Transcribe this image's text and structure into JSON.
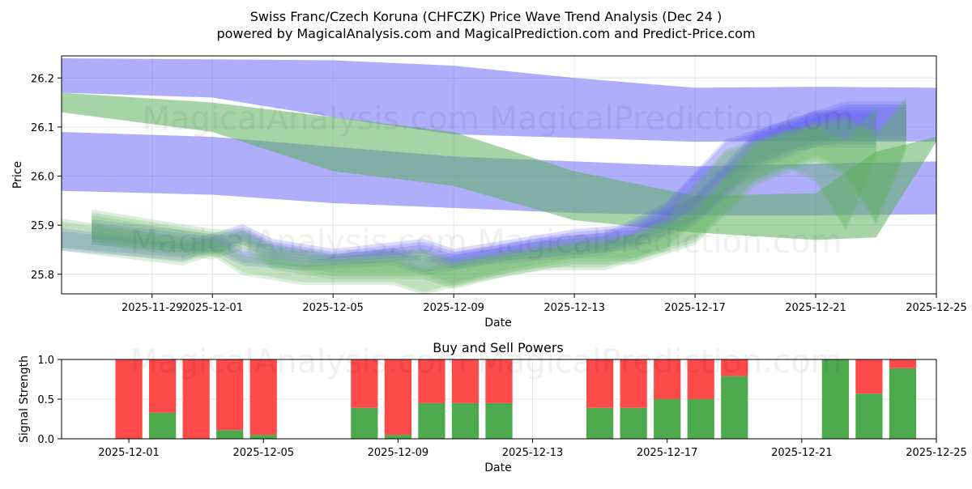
{
  "chart_data": [
    {
      "type": "area",
      "title_line1": "Swiss Franc/Czech Koruna (CHFCZK) Price Wave Trend Analysis (Dec 24 )",
      "title_line2": "powered by MagicalAnalysis.com and MagicalPrediction.com and Predict-Price.com",
      "xlabel": "Date",
      "ylabel": "Price",
      "xlim": [
        "2025-11-26",
        "2025-12-25"
      ],
      "ylim": [
        25.76,
        26.245
      ],
      "x_ticks": [
        "2025-11-29",
        "2025-12-01",
        "2025-12-05",
        "2025-12-09",
        "2025-12-13",
        "2025-12-17",
        "2025-12-21",
        "2025-12-25"
      ],
      "y_ticks": [
        25.8,
        25.9,
        26.0,
        26.1,
        26.2
      ],
      "watermark": "MagicalAnalysis.com    MagicalPrediction.com",
      "series": [
        {
          "name": "upper blue band",
          "color": "#6b6bf5",
          "x": [
            "2025-11-26",
            "2025-12-01",
            "2025-12-05",
            "2025-12-09",
            "2025-12-13",
            "2025-12-17",
            "2025-12-21",
            "2025-12-25"
          ],
          "upper": [
            26.24,
            26.238,
            26.236,
            26.225,
            26.2,
            26.18,
            26.182,
            26.18
          ],
          "lower": [
            26.17,
            26.16,
            26.12,
            26.085,
            26.078,
            26.07,
            26.072,
            26.07
          ]
        },
        {
          "name": "lower blue band",
          "color": "#6b6bf5",
          "x": [
            "2025-11-26",
            "2025-12-01",
            "2025-12-05",
            "2025-12-09",
            "2025-12-13",
            "2025-12-17",
            "2025-12-21",
            "2025-12-25"
          ],
          "upper": [
            26.09,
            26.08,
            26.06,
            26.04,
            26.03,
            26.02,
            26.025,
            26.03
          ],
          "lower": [
            25.97,
            25.962,
            25.945,
            25.935,
            25.925,
            25.92,
            25.92,
            25.922
          ]
        },
        {
          "name": "green trend band",
          "color": "#5fb15f",
          "x": [
            "2025-11-26",
            "2025-12-01",
            "2025-12-05",
            "2025-12-09",
            "2025-12-13",
            "2025-12-17",
            "2025-12-21",
            "2025-12-23",
            "2025-12-25"
          ],
          "upper": [
            26.17,
            26.15,
            26.12,
            26.09,
            26.01,
            25.96,
            25.965,
            26.05,
            26.08
          ],
          "lower": [
            26.13,
            26.09,
            26.01,
            25.98,
            25.91,
            25.885,
            25.87,
            25.875,
            26.07
          ]
        },
        {
          "name": "price wave blue",
          "color": "#5a5af2",
          "x": [
            "2025-11-27",
            "2025-12-01",
            "2025-12-02",
            "2025-12-03",
            "2025-12-05",
            "2025-12-08",
            "2025-12-09",
            "2025-12-11",
            "2025-12-13",
            "2025-12-15",
            "2025-12-17",
            "2025-12-19",
            "2025-12-21",
            "2025-12-22",
            "2025-12-24"
          ],
          "upper": [
            25.9,
            25.87,
            25.89,
            25.86,
            25.84,
            25.86,
            25.84,
            25.86,
            25.88,
            25.89,
            25.95,
            26.08,
            26.12,
            26.14,
            26.14
          ],
          "lower": [
            25.86,
            25.84,
            25.86,
            25.83,
            25.82,
            25.83,
            25.81,
            25.83,
            25.84,
            25.85,
            25.9,
            26.01,
            26.06,
            26.07,
            26.07
          ]
        },
        {
          "name": "price wave green",
          "color": "#5fb15f",
          "x": [
            "2025-11-27",
            "2025-12-01",
            "2025-12-02",
            "2025-12-03",
            "2025-12-05",
            "2025-12-08",
            "2025-12-09",
            "2025-12-11",
            "2025-12-13",
            "2025-12-15",
            "2025-12-17",
            "2025-12-19",
            "2025-12-21",
            "2025-12-22",
            "2025-12-23",
            "2025-12-24"
          ],
          "upper": [
            25.92,
            25.88,
            25.88,
            25.85,
            25.83,
            25.84,
            25.82,
            25.84,
            25.86,
            25.87,
            25.92,
            26.06,
            26.1,
            26.11,
            26.08,
            26.15
          ],
          "lower": [
            25.86,
            25.83,
            25.85,
            25.81,
            25.79,
            25.79,
            25.77,
            25.8,
            25.82,
            25.82,
            25.86,
            25.98,
            26.03,
            26.0,
            25.9,
            26.05
          ]
        }
      ]
    },
    {
      "type": "bar",
      "title": "Buy and Sell Powers",
      "xlabel": "Date",
      "ylabel": "Signal Strength",
      "xlim": [
        "2025-11-29",
        "2025-12-25"
      ],
      "ylim": [
        0,
        1.0
      ],
      "x_ticks": [
        "2025-12-01",
        "2025-12-05",
        "2025-12-09",
        "2025-12-13",
        "2025-12-17",
        "2025-12-21",
        "2025-12-25"
      ],
      "y_ticks": [
        0.0,
        0.5,
        1.0
      ],
      "colors": {
        "buy": "#4caa4c",
        "sell": "#ff4a4a"
      },
      "categories": [
        "2025-12-01",
        "2025-12-02",
        "2025-12-03",
        "2025-12-04",
        "2025-12-05",
        "2025-12-08",
        "2025-12-09",
        "2025-12-10",
        "2025-12-11",
        "2025-12-12",
        "2025-12-15",
        "2025-12-16",
        "2025-12-17",
        "2025-12-18",
        "2025-12-19",
        "2025-12-22",
        "2025-12-23",
        "2025-12-24"
      ],
      "series": [
        {
          "name": "Buy",
          "values": [
            0.0,
            0.33,
            0.0,
            0.11,
            0.05,
            0.39,
            0.05,
            0.45,
            0.45,
            0.45,
            0.39,
            0.39,
            0.5,
            0.5,
            0.79,
            1.0,
            0.57,
            0.89
          ]
        },
        {
          "name": "Sell",
          "values": [
            1.0,
            0.67,
            1.0,
            0.89,
            0.95,
            0.61,
            0.95,
            0.55,
            0.55,
            0.55,
            0.61,
            0.61,
            0.5,
            0.5,
            0.21,
            0.0,
            0.43,
            0.11
          ]
        }
      ],
      "watermark": "MagicalAnalysis.com    MagicalPrediction.com"
    }
  ]
}
